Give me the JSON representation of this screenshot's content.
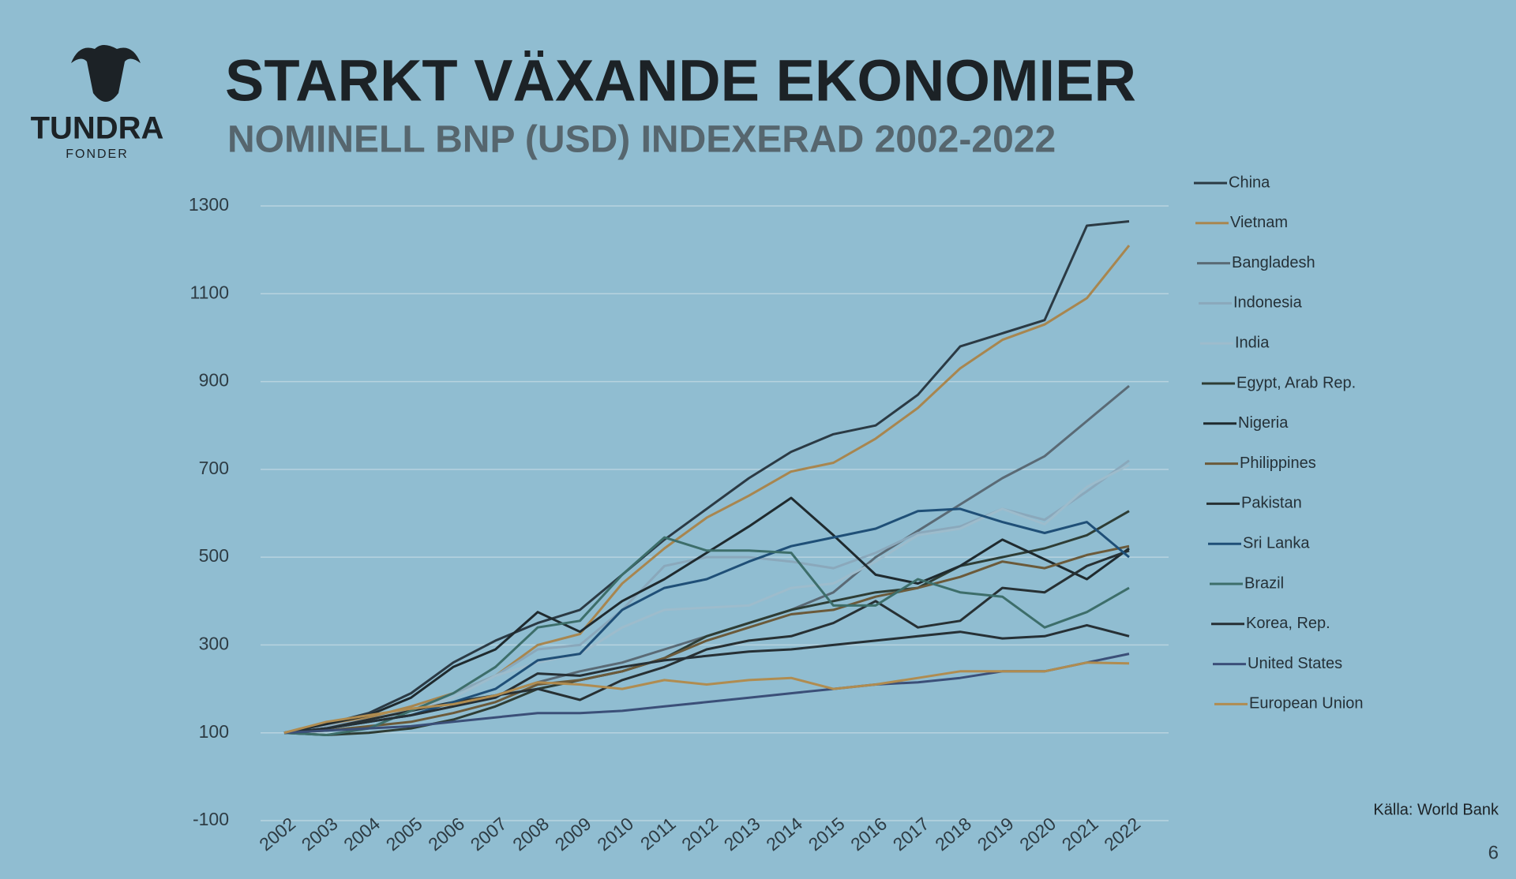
{
  "logo": {
    "name": "TUNDRA",
    "sub": "FONDER"
  },
  "source": "Källa: World Bank",
  "page_number": 6,
  "chart_data": {
    "type": "line",
    "title": "STARKT VÄXANDE EKONOMIER",
    "subtitle": "NOMINELL BNP (USD) INDEXERAD 2002-2022",
    "categories": [
      "2002",
      "2003",
      "2004",
      "2005",
      "2006",
      "2007",
      "2008",
      "2009",
      "2010",
      "2011",
      "2012",
      "2013",
      "2014",
      "2015",
      "2016",
      "2017",
      "2018",
      "2019",
      "2020",
      "2021",
      "2022"
    ],
    "ylim": [
      -100,
      1300
    ],
    "yticks": [
      -100,
      100,
      300,
      500,
      700,
      900,
      1100,
      1300
    ],
    "grid": true,
    "legend": "right",
    "series": [
      {
        "name": "China",
        "color": "#2b3a44",
        "values": [
          100,
          120,
          145,
          190,
          260,
          310,
          350,
          380,
          460,
          540,
          610,
          680,
          740,
          780,
          800,
          870,
          980,
          1010,
          1040,
          1255,
          1265
        ]
      },
      {
        "name": "Vietnam",
        "color": "#a8864f",
        "values": [
          100,
          115,
          135,
          160,
          190,
          230,
          300,
          325,
          440,
          520,
          590,
          640,
          695,
          715,
          770,
          840,
          930,
          995,
          1030,
          1090,
          1210
        ]
      },
      {
        "name": "Bangladesh",
        "color": "#5a6a75",
        "values": [
          100,
          110,
          125,
          140,
          160,
          185,
          215,
          240,
          260,
          290,
          320,
          350,
          380,
          420,
          500,
          560,
          620,
          680,
          730,
          810,
          890
        ]
      },
      {
        "name": "Indonesia",
        "color": "#8aa8bb",
        "values": [
          100,
          115,
          130,
          150,
          190,
          230,
          290,
          300,
          380,
          480,
          500,
          500,
          490,
          475,
          510,
          555,
          570,
          610,
          585,
          650,
          720
        ]
      },
      {
        "name": "India",
        "color": "#9dbccc",
        "values": [
          100,
          110,
          130,
          150,
          180,
          230,
          260,
          280,
          340,
          380,
          385,
          390,
          430,
          440,
          490,
          550,
          565,
          610,
          575,
          660,
          710
        ]
      },
      {
        "name": "Egypt, Arab Rep.",
        "color": "#2e3d35",
        "values": [
          100,
          95,
          100,
          110,
          130,
          160,
          200,
          220,
          240,
          270,
          320,
          350,
          380,
          400,
          420,
          430,
          480,
          500,
          520,
          550,
          605
        ]
      },
      {
        "name": "Nigeria",
        "color": "#1f2a2e",
        "values": [
          100,
          120,
          140,
          180,
          250,
          290,
          375,
          330,
          400,
          450,
          510,
          570,
          635,
          550,
          460,
          440,
          480,
          540,
          495,
          450,
          520
        ]
      },
      {
        "name": "Philippines",
        "color": "#6b5a3a",
        "values": [
          100,
          105,
          115,
          125,
          145,
          170,
          210,
          220,
          240,
          270,
          310,
          340,
          370,
          380,
          410,
          430,
          455,
          490,
          475,
          505,
          525
        ]
      },
      {
        "name": "Pakistan",
        "color": "#273033",
        "values": [
          100,
          110,
          130,
          150,
          170,
          185,
          200,
          175,
          220,
          250,
          290,
          310,
          320,
          350,
          400,
          340,
          355,
          430,
          420,
          480,
          515
        ]
      },
      {
        "name": "Sri Lanka",
        "color": "#1f4f77",
        "values": [
          100,
          110,
          125,
          140,
          170,
          200,
          265,
          280,
          380,
          430,
          450,
          490,
          525,
          545,
          565,
          605,
          610,
          580,
          555,
          580,
          500
        ]
      },
      {
        "name": "Brazil",
        "color": "#3d6e6a",
        "values": [
          100,
          95,
          110,
          150,
          190,
          250,
          340,
          355,
          460,
          545,
          515,
          515,
          510,
          390,
          390,
          450,
          420,
          410,
          340,
          375,
          430
        ]
      },
      {
        "name": "Korea, Rep.",
        "color": "#263035",
        "values": [
          100,
          110,
          125,
          140,
          160,
          180,
          235,
          230,
          250,
          265,
          275,
          285,
          290,
          300,
          310,
          320,
          330,
          315,
          320,
          345,
          320
        ]
      },
      {
        "name": "United States",
        "color": "#3b4f78",
        "values": [
          100,
          105,
          110,
          115,
          125,
          135,
          145,
          145,
          150,
          160,
          170,
          180,
          190,
          200,
          210,
          215,
          225,
          240,
          240,
          260,
          280
        ]
      },
      {
        "name": "European Union",
        "color": "#b08c50",
        "values": [
          100,
          125,
          140,
          155,
          165,
          185,
          215,
          210,
          200,
          220,
          210,
          220,
          225,
          200,
          210,
          225,
          240,
          240,
          240,
          260,
          258
        ]
      }
    ]
  }
}
